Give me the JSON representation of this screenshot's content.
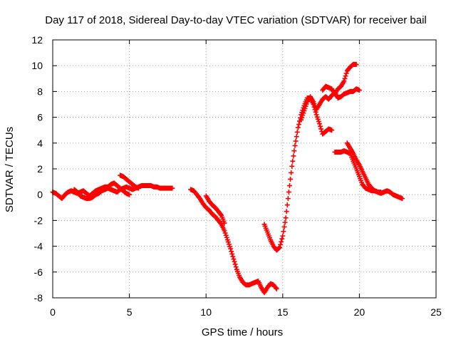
{
  "chart_data": {
    "type": "scatter",
    "title": "Day 117 of 2018, Sidereal Day-to-day VTEC variation (SDTVAR) for receiver bail",
    "xlabel": "GPS time / hours",
    "ylabel": "SDTVAR / TECUs",
    "xlim": [
      0,
      25
    ],
    "ylim": [
      -8,
      12
    ],
    "xticks": [
      0,
      5,
      10,
      15,
      20,
      25
    ],
    "yticks": [
      -8,
      -6,
      -4,
      -2,
      0,
      2,
      4,
      6,
      8,
      10,
      12
    ],
    "grid": true,
    "marker": "plus",
    "color": "#ff0000",
    "series": [
      {
        "name": "SDTVAR",
        "segments": [
          [
            [
              0.0,
              0.2
            ],
            [
              0.2,
              0.1
            ],
            [
              0.4,
              -0.1
            ],
            [
              0.6,
              -0.3
            ],
            [
              0.8,
              0.0
            ],
            [
              1.0,
              0.2
            ],
            [
              1.2,
              0.3
            ],
            [
              1.4,
              0.2
            ],
            [
              1.6,
              0.1
            ],
            [
              1.8,
              0.2
            ],
            [
              2.0,
              0.3
            ],
            [
              2.2,
              0.1
            ],
            [
              2.4,
              -0.1
            ],
            [
              2.6,
              0.1
            ],
            [
              2.8,
              0.3
            ],
            [
              3.0,
              0.4
            ],
            [
              3.2,
              0.5
            ],
            [
              3.4,
              0.6
            ],
            [
              3.6,
              0.6
            ],
            [
              3.8,
              0.8
            ],
            [
              4.0,
              0.9
            ],
            [
              4.2,
              0.7
            ],
            [
              4.4,
              0.5
            ],
            [
              4.6,
              0.3
            ],
            [
              4.8,
              0.1
            ],
            [
              5.0,
              0.0
            ]
          ],
          [
            [
              1.4,
              0.4
            ],
            [
              1.6,
              0.2
            ],
            [
              1.8,
              -0.1
            ],
            [
              2.0,
              -0.2
            ],
            [
              2.2,
              -0.3
            ],
            [
              2.4,
              -0.3
            ],
            [
              2.6,
              -0.2
            ],
            [
              2.8,
              0.0
            ],
            [
              3.0,
              0.1
            ],
            [
              3.2,
              0.3
            ],
            [
              3.4,
              0.4
            ],
            [
              3.6,
              0.5
            ],
            [
              3.8,
              0.4
            ],
            [
              4.0,
              0.3
            ],
            [
              4.2,
              0.2
            ],
            [
              4.4,
              0.4
            ],
            [
              4.6,
              0.5
            ],
            [
              4.8,
              0.6
            ],
            [
              5.0,
              0.5
            ],
            [
              5.2,
              0.4
            ],
            [
              5.4,
              0.5
            ],
            [
              5.6,
              0.6
            ],
            [
              5.8,
              0.7
            ],
            [
              6.0,
              0.7
            ],
            [
              6.2,
              0.7
            ],
            [
              6.4,
              0.7
            ],
            [
              6.6,
              0.6
            ],
            [
              6.8,
              0.6
            ],
            [
              7.0,
              0.5
            ],
            [
              7.2,
              0.5
            ],
            [
              7.4,
              0.5
            ],
            [
              7.6,
              0.5
            ],
            [
              7.8,
              0.5
            ]
          ],
          [
            [
              4.4,
              1.5
            ],
            [
              4.6,
              1.4
            ],
            [
              4.8,
              1.2
            ],
            [
              5.0,
              1.0
            ],
            [
              5.2,
              0.8
            ],
            [
              5.4,
              0.6
            ],
            [
              5.6,
              0.5
            ]
          ],
          [
            [
              9.0,
              0.4
            ],
            [
              9.2,
              0.3
            ],
            [
              9.4,
              0.0
            ],
            [
              9.6,
              -0.3
            ],
            [
              9.8,
              -0.7
            ],
            [
              10.0,
              -1.0
            ],
            [
              10.2,
              -1.2
            ],
            [
              10.4,
              -1.5
            ],
            [
              10.6,
              -1.7
            ],
            [
              10.8,
              -2.0
            ],
            [
              11.0,
              -2.3
            ],
            [
              11.2,
              -2.8
            ],
            [
              11.4,
              -3.5
            ],
            [
              11.6,
              -4.2
            ],
            [
              11.8,
              -5.0
            ],
            [
              12.0,
              -5.8
            ],
            [
              12.2,
              -6.4
            ],
            [
              12.4,
              -6.8
            ],
            [
              12.6,
              -7.0
            ],
            [
              12.8,
              -7.0
            ],
            [
              13.0,
              -6.9
            ],
            [
              13.2,
              -6.8
            ],
            [
              13.4,
              -6.7
            ],
            [
              13.6,
              -7.2
            ],
            [
              13.8,
              -7.6
            ],
            [
              14.0,
              -7.2
            ],
            [
              14.2,
              -6.9
            ],
            [
              14.4,
              -7.0
            ],
            [
              14.6,
              -7.3
            ]
          ],
          [
            [
              10.0,
              -0.1
            ],
            [
              10.2,
              -0.5
            ],
            [
              10.4,
              -0.8
            ],
            [
              10.6,
              -1.0
            ],
            [
              10.8,
              -1.3
            ],
            [
              11.0,
              -1.6
            ],
            [
              11.2,
              -2.2
            ]
          ],
          [
            [
              13.8,
              -2.3
            ],
            [
              14.0,
              -2.9
            ],
            [
              14.2,
              -3.5
            ],
            [
              14.4,
              -4.0
            ],
            [
              14.6,
              -4.3
            ],
            [
              14.8,
              -4.1
            ],
            [
              15.0,
              -3.2
            ],
            [
              15.2,
              -1.8
            ],
            [
              15.4,
              0.2
            ],
            [
              15.6,
              2.2
            ],
            [
              15.8,
              3.8
            ],
            [
              16.0,
              5.2
            ],
            [
              16.2,
              6.2
            ],
            [
              16.4,
              6.9
            ],
            [
              16.6,
              7.5
            ],
            [
              16.8,
              7.5
            ],
            [
              17.0,
              7.0
            ],
            [
              17.2,
              6.2
            ],
            [
              17.4,
              5.5
            ],
            [
              17.6,
              4.7
            ],
            [
              17.8,
              4.9
            ],
            [
              18.0,
              5.1
            ],
            [
              18.2,
              5.0
            ]
          ],
          [
            [
              16.2,
              5.8
            ],
            [
              16.4,
              6.5
            ],
            [
              16.6,
              7.2
            ],
            [
              16.8,
              7.6
            ],
            [
              17.0,
              7.2
            ],
            [
              17.2,
              6.6
            ],
            [
              17.4,
              7.0
            ],
            [
              17.6,
              7.4
            ],
            [
              17.8,
              7.6
            ],
            [
              18.0,
              7.4
            ],
            [
              18.2,
              7.7
            ],
            [
              18.4,
              7.9
            ],
            [
              18.6,
              7.5
            ],
            [
              18.8,
              7.6
            ],
            [
              19.0,
              7.8
            ],
            [
              19.2,
              7.9
            ],
            [
              19.4,
              8.0
            ],
            [
              19.6,
              8.0
            ],
            [
              19.8,
              8.2
            ],
            [
              20.0,
              8.1
            ]
          ],
          [
            [
              17.6,
              8.1
            ],
            [
              17.8,
              8.4
            ],
            [
              18.0,
              8.3
            ],
            [
              18.2,
              8.2
            ],
            [
              18.4,
              7.8
            ],
            [
              18.6,
              8.2
            ],
            [
              18.8,
              8.4
            ],
            [
              19.0,
              8.8
            ],
            [
              19.2,
              9.6
            ],
            [
              19.4,
              9.9
            ],
            [
              19.6,
              10.1
            ],
            [
              19.8,
              10.1
            ]
          ],
          [
            [
              18.4,
              3.3
            ],
            [
              18.6,
              3.3
            ],
            [
              18.8,
              3.3
            ],
            [
              19.0,
              3.4
            ],
            [
              19.2,
              3.3
            ],
            [
              19.4,
              3.2
            ],
            [
              19.6,
              2.6
            ],
            [
              19.8,
              2.0
            ],
            [
              20.0,
              1.4
            ],
            [
              20.2,
              0.8
            ],
            [
              20.4,
              0.5
            ],
            [
              20.6,
              0.4
            ],
            [
              20.8,
              0.3
            ],
            [
              21.0,
              0.3
            ],
            [
              21.2,
              0.2
            ],
            [
              21.4,
              0.2
            ]
          ],
          [
            [
              19.2,
              4.0
            ],
            [
              19.4,
              3.6
            ],
            [
              19.6,
              3.2
            ],
            [
              19.8,
              2.7
            ],
            [
              20.0,
              2.3
            ],
            [
              20.2,
              1.8
            ],
            [
              20.4,
              1.3
            ],
            [
              20.6,
              0.8
            ],
            [
              20.8,
              0.5
            ],
            [
              21.0,
              0.3
            ],
            [
              21.2,
              0.2
            ],
            [
              21.4,
              0.1
            ],
            [
              21.6,
              0.2
            ],
            [
              21.8,
              0.3
            ],
            [
              22.0,
              0.2
            ],
            [
              22.2,
              0.0
            ],
            [
              22.4,
              -0.1
            ],
            [
              22.6,
              -0.2
            ],
            [
              22.8,
              -0.3
            ]
          ]
        ]
      }
    ]
  }
}
